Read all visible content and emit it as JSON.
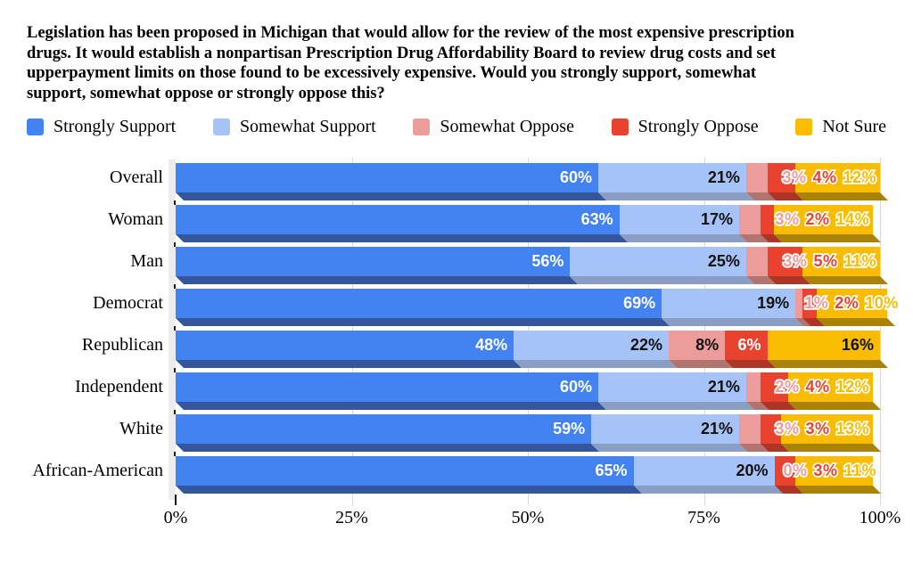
{
  "title_lines": [
    "Legislation has been proposed in Michigan that would allow for the review of the most expensive prescription",
    "drugs. It would establish a nonpartisan Prescription Drug Affordability Board to review drug costs and set",
    "upperpayment limits on those found to be excessively expensive. Would you strongly support, somewhat",
    "support, somewhat oppose or strongly oppose this?"
  ],
  "chart_data": {
    "type": "bar",
    "orientation": "horizontal",
    "stacked": true,
    "unit": "%",
    "legend_position": "top",
    "grid": true,
    "categories": [
      "Overall",
      "Woman",
      "Man",
      "Democrat",
      "Republican",
      "Independent",
      "White",
      "African-American"
    ],
    "series": [
      {
        "name": "Strongly Support",
        "color": "#4382F1",
        "shadow": "#35569D",
        "label_color": "#FFFFFF",
        "values": [
          60,
          63,
          56,
          69,
          48,
          60,
          59,
          65
        ]
      },
      {
        "name": "Somewhat Support",
        "color": "#A6C3F7",
        "shadow": "#8A9EC5",
        "label_color": "#111111",
        "values": [
          21,
          17,
          25,
          19,
          22,
          21,
          21,
          20
        ]
      },
      {
        "name": "Somewhat Oppose",
        "color": "#EC9C9A",
        "shadow": "#B1756F",
        "label_color": "#111111",
        "values": [
          3,
          3,
          3,
          1,
          8,
          2,
          3,
          0
        ]
      },
      {
        "name": "Strongly Oppose",
        "color": "#E9422E",
        "shadow": "#AC3526",
        "label_color": "#FFFFFF",
        "values": [
          4,
          2,
          5,
          2,
          6,
          4,
          3,
          3
        ]
      },
      {
        "name": "Not Sure",
        "color": "#F9BC01",
        "shadow": "#AA8205",
        "label_color": "#111111",
        "values": [
          12,
          14,
          11,
          10,
          16,
          12,
          13,
          11
        ]
      }
    ],
    "label_mode_by_row": [
      "outline",
      "outline",
      "outline",
      "outline",
      "inside",
      "outline",
      "outline",
      "outline"
    ],
    "x_axis": {
      "range": [
        0,
        100
      ],
      "ticks": [
        {
          "label": "0%",
          "value": 0
        },
        {
          "label": "25%",
          "value": 25
        },
        {
          "label": "50%",
          "value": 50
        },
        {
          "label": "75%",
          "value": 75
        },
        {
          "label": "100%",
          "value": 100
        }
      ]
    }
  },
  "colors": {
    "gridline": "#D8D8D8",
    "wall": "#ECECEC",
    "axis_text": "#000000"
  }
}
